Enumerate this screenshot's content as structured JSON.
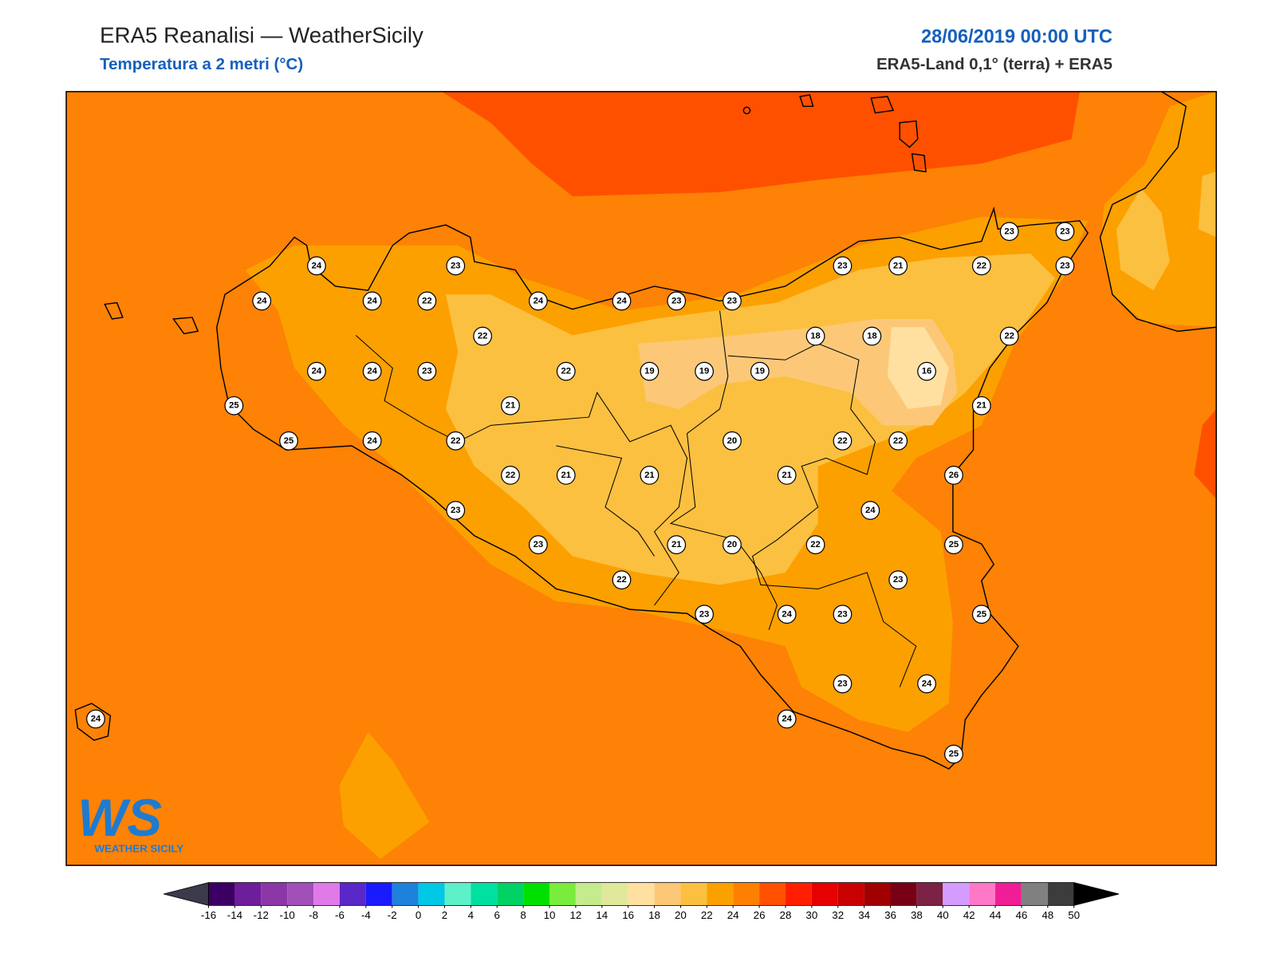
{
  "header": {
    "title": "ERA5 Reanalisi — WeatherSicily",
    "subtitle": "Temperatura a 2 metri (°C)",
    "date": "28/06/2019 00:00 UTC",
    "source": "ERA5-Land 0,1° (terra) + ERA5"
  },
  "map": {
    "stations": [
      24,
      23,
      24,
      24,
      22,
      24,
      24,
      23,
      23,
      23,
      21,
      22,
      23,
      23,
      23,
      22,
      18,
      18,
      22,
      24,
      24,
      23,
      22,
      19,
      19,
      19,
      16,
      25,
      21,
      21,
      25,
      24,
      22,
      20,
      22,
      22,
      22,
      21,
      21,
      21,
      26,
      23,
      24,
      23,
      21,
      20,
      22,
      25,
      22,
      23,
      23,
      24,
      23,
      25,
      23,
      24,
      24,
      25,
      24
    ]
  },
  "logo": {
    "mark": "WS",
    "name": "WEATHER SICILY"
  },
  "colorbar": {
    "ticks": [
      -16,
      -14,
      -12,
      -10,
      -8,
      -6,
      -4,
      -2,
      0,
      2,
      4,
      6,
      8,
      10,
      12,
      14,
      16,
      18,
      20,
      22,
      24,
      26,
      28,
      30,
      32,
      34,
      36,
      38,
      40,
      42,
      44,
      46,
      48,
      50
    ],
    "colors": [
      "#3c0064",
      "#6e1e9a",
      "#8c37a8",
      "#a050b8",
      "#e07ae8",
      "#5a28c8",
      "#1a1aff",
      "#1e82dc",
      "#00c8e6",
      "#5ef0c8",
      "#00e0a0",
      "#00d264",
      "#00e000",
      "#7aec3c",
      "#c4ec8c",
      "#e0e89c",
      "#ffe0a0",
      "#fcc878",
      "#fcc040",
      "#fca000",
      "#ff8000",
      "#ff5000",
      "#ff1e00",
      "#e60000",
      "#c80000",
      "#a00000",
      "#780014",
      "#7b2245",
      "#d49cff",
      "#ff78c8",
      "#f01e96",
      "#808080",
      "#3c3c3c"
    ],
    "under_color": "#3a3a4a",
    "over_color": "#000000"
  }
}
